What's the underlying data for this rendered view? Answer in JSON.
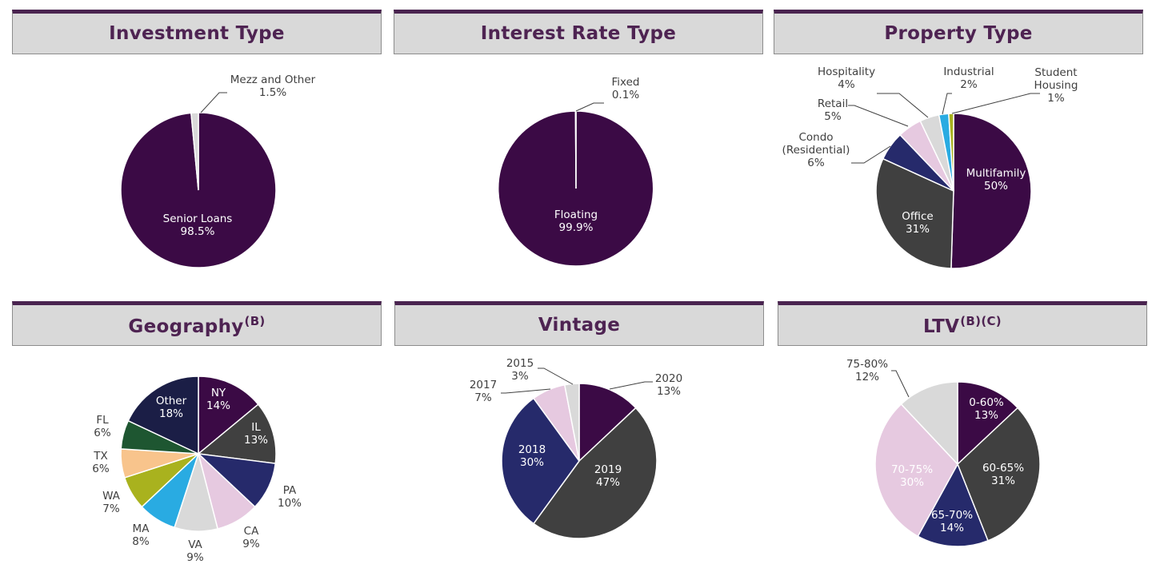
{
  "colors": {
    "header_bg": "#d9d9d9",
    "header_accent": "#4a2450",
    "title_text": "#4e2352",
    "label_dark": "#404040",
    "label_light": "#ffffff"
  },
  "chart_data": [
    {
      "type": "pie",
      "title": "Investment Type",
      "slices": [
        {
          "label": "Senior Loans",
          "value": 98.5,
          "value_label": "98.5%",
          "color": "#3b0a45"
        },
        {
          "label": "Mezz and Other",
          "value": 1.5,
          "value_label": "1.5%",
          "color": "#d9d9d9"
        }
      ]
    },
    {
      "type": "pie",
      "title": "Interest Rate Type",
      "slices": [
        {
          "label": "Floating",
          "value": 99.9,
          "value_label": "99.9%",
          "color": "#3b0a45"
        },
        {
          "label": "Fixed",
          "value": 0.1,
          "value_label": "0.1%",
          "color": "#d9d9d9"
        }
      ]
    },
    {
      "type": "pie",
      "title": "Property Type",
      "slices": [
        {
          "label": "Multifamily",
          "value": 50,
          "value_label": "50%",
          "color": "#3b0a45"
        },
        {
          "label": "Office",
          "value": 31,
          "value_label": "31%",
          "color": "#404040"
        },
        {
          "label": "Condo (Residential)",
          "value": 6,
          "value_label": "6%",
          "color": "#262a6b"
        },
        {
          "label": "Retail",
          "value": 5,
          "value_label": "5%",
          "color": "#e6c9e0"
        },
        {
          "label": "Hospitality",
          "value": 4,
          "value_label": "4%",
          "color": "#d9d9d9"
        },
        {
          "label": "Industrial",
          "value": 2,
          "value_label": "2%",
          "color": "#29abe2"
        },
        {
          "label": "Student Housing",
          "value": 1,
          "value_label": "1%",
          "color": "#a9b21e"
        }
      ]
    },
    {
      "type": "pie",
      "title": "Geography",
      "title_sup": "(B)",
      "slices": [
        {
          "label": "NY",
          "value": 14,
          "value_label": "14%",
          "color": "#3b0a45"
        },
        {
          "label": "IL",
          "value": 13,
          "value_label": "13%",
          "color": "#404040"
        },
        {
          "label": "PA",
          "value": 10,
          "value_label": "10%",
          "color": "#262a6b"
        },
        {
          "label": "CA",
          "value": 9,
          "value_label": "9%",
          "color": "#e6c9e0"
        },
        {
          "label": "VA",
          "value": 9,
          "value_label": "9%",
          "color": "#d9d9d9"
        },
        {
          "label": "MA",
          "value": 8,
          "value_label": "8%",
          "color": "#29abe2"
        },
        {
          "label": "WA",
          "value": 7,
          "value_label": "7%",
          "color": "#a9b21e"
        },
        {
          "label": "TX",
          "value": 6,
          "value_label": "6%",
          "color": "#f8c48c"
        },
        {
          "label": "FL",
          "value": 6,
          "value_label": "6%",
          "color": "#1e5631"
        },
        {
          "label": "Other",
          "value": 18,
          "value_label": "18%",
          "color": "#1b1e46"
        }
      ]
    },
    {
      "type": "pie",
      "title": "Vintage",
      "slices": [
        {
          "label": "2020",
          "value": 13,
          "value_label": "13%",
          "color": "#3b0a45"
        },
        {
          "label": "2019",
          "value": 47,
          "value_label": "47%",
          "color": "#404040"
        },
        {
          "label": "2018",
          "value": 30,
          "value_label": "30%",
          "color": "#262a6b"
        },
        {
          "label": "2017",
          "value": 7,
          "value_label": "7%",
          "color": "#e6c9e0"
        },
        {
          "label": "2015",
          "value": 3,
          "value_label": "3%",
          "color": "#d9d9d9"
        }
      ]
    },
    {
      "type": "pie",
      "title": "LTV",
      "title_sup": "(B)(C)",
      "slices": [
        {
          "label": "0-60%",
          "value": 13,
          "value_label": "13%",
          "color": "#3b0a45"
        },
        {
          "label": "60-65%",
          "value": 31,
          "value_label": "31%",
          "color": "#404040"
        },
        {
          "label": "65-70%",
          "value": 14,
          "value_label": "14%",
          "color": "#262a6b"
        },
        {
          "label": "70-75%",
          "value": 30,
          "value_label": "30%",
          "color": "#e6c9e0"
        },
        {
          "label": "75-80%",
          "value": 12,
          "value_label": "12%",
          "color": "#d9d9d9"
        }
      ]
    }
  ]
}
